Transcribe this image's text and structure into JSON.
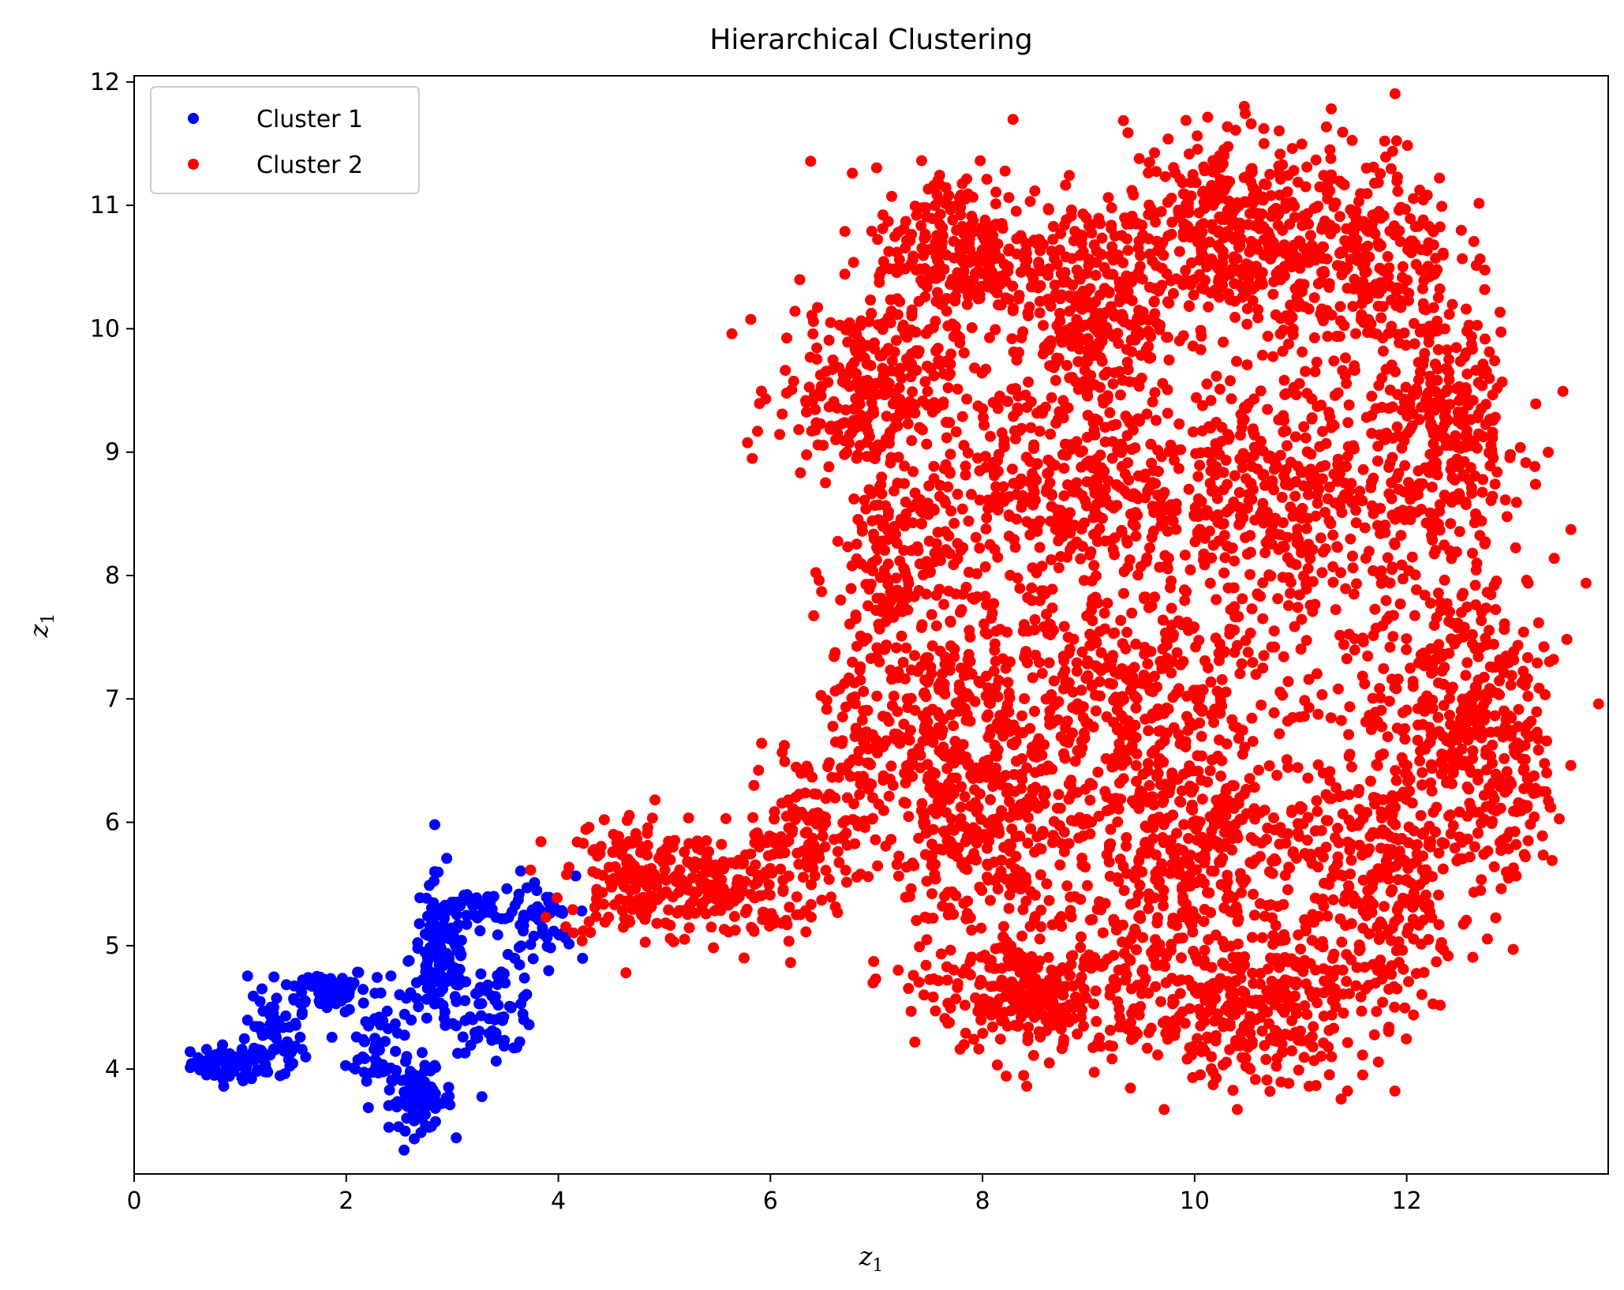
{
  "chart_data": {
    "type": "scatter",
    "title": "Hierarchical Clustering",
    "xlabel": {
      "base": "z",
      "sub": "1"
    },
    "ylabel": {
      "base": "z",
      "sub": "1"
    },
    "xlim": [
      0,
      13.9
    ],
    "ylim": [
      3.15,
      12.05
    ],
    "xticks": [
      0,
      2,
      4,
      6,
      8,
      10,
      12
    ],
    "yticks": [
      4,
      5,
      6,
      7,
      8,
      9,
      10,
      11,
      12
    ],
    "legend_position": "upper-left",
    "grid": false,
    "series": [
      {
        "name": "Cluster 1",
        "color": "#0000ff",
        "regions": [
          {
            "cx": 0.9,
            "cy": 4.05,
            "rx": 0.3,
            "ry": 0.12,
            "count": 60
          },
          {
            "cx": 1.3,
            "cy": 4.2,
            "rx": 0.25,
            "ry": 0.3,
            "count": 60
          },
          {
            "cx": 1.8,
            "cy": 4.65,
            "rx": 0.35,
            "ry": 0.15,
            "count": 70
          },
          {
            "cx": 2.3,
            "cy": 4.2,
            "rx": 0.25,
            "ry": 0.4,
            "count": 60
          },
          {
            "cx": 2.7,
            "cy": 3.75,
            "rx": 0.25,
            "ry": 0.2,
            "count": 80
          },
          {
            "cx": 2.9,
            "cy": 4.9,
            "rx": 0.25,
            "ry": 0.55,
            "count": 130
          },
          {
            "cx": 3.4,
            "cy": 4.5,
            "rx": 0.35,
            "ry": 0.3,
            "count": 70
          },
          {
            "cx": 3.8,
            "cy": 5.2,
            "rx": 0.3,
            "ry": 0.3,
            "count": 50
          },
          {
            "cx": 3.3,
            "cy": 5.25,
            "rx": 0.3,
            "ry": 0.15,
            "count": 30
          }
        ]
      },
      {
        "name": "Cluster 2",
        "color": "#ff0000",
        "regions": [
          {
            "cx": 4.7,
            "cy": 5.55,
            "rx": 0.55,
            "ry": 0.45,
            "count": 180
          },
          {
            "cx": 5.6,
            "cy": 5.45,
            "rx": 0.5,
            "ry": 0.35,
            "count": 140
          },
          {
            "cx": 6.3,
            "cy": 5.9,
            "rx": 0.4,
            "ry": 0.55,
            "count": 110
          },
          {
            "cx": 6.9,
            "cy": 6.5,
            "rx": 0.35,
            "ry": 0.7,
            "count": 100
          },
          {
            "cx": 7.2,
            "cy": 8.0,
            "rx": 0.5,
            "ry": 0.9,
            "count": 180
          },
          {
            "cx": 6.9,
            "cy": 9.5,
            "rx": 0.7,
            "ry": 0.6,
            "count": 260
          },
          {
            "cx": 7.8,
            "cy": 10.6,
            "rx": 0.7,
            "ry": 0.6,
            "count": 280
          },
          {
            "cx": 9.0,
            "cy": 10.2,
            "rx": 0.6,
            "ry": 0.7,
            "count": 280
          },
          {
            "cx": 10.2,
            "cy": 10.8,
            "rx": 0.7,
            "ry": 0.7,
            "count": 320
          },
          {
            "cx": 11.5,
            "cy": 10.6,
            "rx": 0.8,
            "ry": 0.8,
            "count": 340
          },
          {
            "cx": 12.4,
            "cy": 9.2,
            "rx": 0.6,
            "ry": 0.8,
            "count": 250
          },
          {
            "cx": 8.8,
            "cy": 8.7,
            "rx": 1.2,
            "ry": 0.8,
            "count": 400
          },
          {
            "cx": 11.0,
            "cy": 8.6,
            "rx": 1.2,
            "ry": 0.8,
            "count": 420
          },
          {
            "cx": 9.3,
            "cy": 7.0,
            "rx": 1.4,
            "ry": 0.9,
            "count": 450
          },
          {
            "cx": 12.5,
            "cy": 7.0,
            "rx": 0.8,
            "ry": 0.9,
            "count": 320
          },
          {
            "cx": 8.0,
            "cy": 5.8,
            "rx": 0.8,
            "ry": 0.9,
            "count": 300
          },
          {
            "cx": 10.0,
            "cy": 5.8,
            "rx": 1.0,
            "ry": 0.7,
            "count": 340
          },
          {
            "cx": 11.7,
            "cy": 5.6,
            "rx": 0.8,
            "ry": 0.9,
            "count": 320
          },
          {
            "cx": 8.6,
            "cy": 4.6,
            "rx": 0.9,
            "ry": 0.45,
            "count": 300
          },
          {
            "cx": 10.5,
            "cy": 4.5,
            "rx": 1.0,
            "ry": 0.5,
            "count": 320
          },
          {
            "cx": 13.0,
            "cy": 6.3,
            "rx": 0.3,
            "ry": 0.7,
            "count": 90
          },
          {
            "cx": 7.7,
            "cy": 7.0,
            "rx": 0.5,
            "ry": 0.8,
            "count": 160
          }
        ]
      }
    ]
  }
}
